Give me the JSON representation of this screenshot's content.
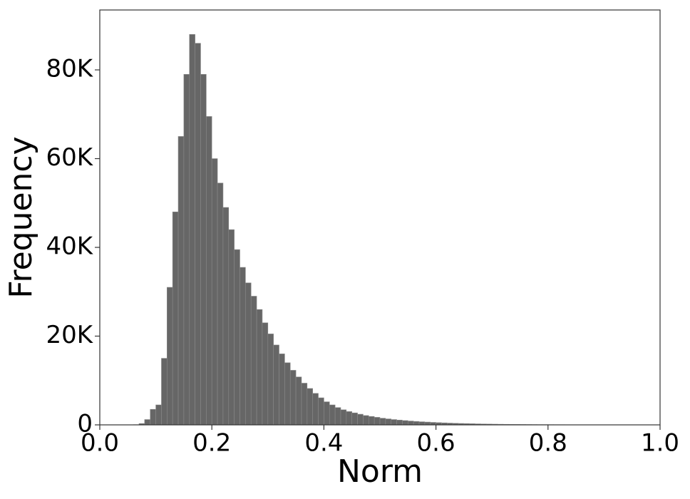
{
  "chart_data": {
    "type": "histogram",
    "x_label": "Norm",
    "y_label": "Frequency",
    "color": "#666666",
    "edgecolor": "#8a8a8a",
    "bins": [
      0,
      0.01,
      0.02,
      0.03,
      0.04,
      0.05,
      0.06,
      0.07,
      0.08,
      0.09,
      0.1,
      0.11,
      0.12,
      0.13,
      0.14,
      0.15,
      0.16,
      0.17,
      0.18,
      0.19,
      0.2,
      0.21,
      0.22,
      0.23,
      0.24,
      0.25,
      0.26,
      0.27,
      0.28,
      0.29,
      0.3,
      0.31,
      0.32,
      0.33,
      0.34,
      0.35,
      0.36,
      0.37,
      0.38,
      0.39,
      0.4,
      0.41,
      0.42,
      0.43,
      0.44,
      0.45,
      0.46,
      0.47,
      0.48,
      0.49,
      0.5,
      0.51,
      0.52,
      0.53,
      0.54,
      0.55,
      0.56,
      0.57,
      0.58,
      0.59,
      0.6,
      0.61,
      0.62,
      0.63,
      0.64,
      0.65,
      0.66,
      0.67,
      0.68,
      0.69,
      0.7,
      0.71,
      0.72,
      0.73,
      0.74,
      0.75,
      0.76,
      0.77,
      0.78,
      0.79,
      0.8,
      0.81,
      0.82,
      0.83,
      0.84,
      0.85,
      0.86,
      0.87,
      0.88,
      0.89,
      0.9,
      0.91,
      0.92,
      0.93,
      0.94,
      0.95,
      0.96,
      0.97,
      0.98,
      0.99,
      1
    ],
    "counts": [
      0,
      0,
      0,
      0,
      0,
      0,
      50,
      300,
      1200,
      3500,
      4500,
      15000,
      31000,
      48000,
      65000,
      79000,
      88000,
      86000,
      79000,
      69500,
      60000,
      54500,
      49000,
      44000,
      39500,
      35500,
      32000,
      29000,
      26000,
      23000,
      20500,
      18000,
      16000,
      14000,
      12300,
      10800,
      9400,
      8200,
      7100,
      6100,
      5200,
      4500,
      3900,
      3400,
      3000,
      2700,
      2400,
      2100,
      1900,
      1700,
      1500,
      1350,
      1200,
      1080,
      970,
      870,
      780,
      700,
      630,
      560,
      500,
      450,
      400,
      360,
      320,
      290,
      260,
      230,
      200,
      180,
      160,
      140,
      125,
      110,
      100,
      90,
      80,
      70,
      60,
      55,
      50,
      45,
      40,
      35,
      30,
      27,
      24,
      21,
      18,
      16,
      14,
      12,
      10,
      9,
      8,
      7,
      6,
      5,
      4,
      3
    ],
    "xlim": [
      0,
      1
    ],
    "xticks": [
      {
        "value": 0,
        "label": "0.0"
      },
      0.2,
      0.4,
      0.6,
      0.8,
      {
        "value": 1,
        "label": "1.0"
      }
    ],
    "ylim": [
      0,
      93500
    ],
    "yticks": [
      0,
      {
        "value": 20000,
        "label": "20K"
      },
      {
        "value": 40000,
        "label": "40K"
      },
      {
        "value": 60000,
        "label": "60K"
      },
      {
        "value": 80000,
        "label": "80K"
      }
    ]
  }
}
